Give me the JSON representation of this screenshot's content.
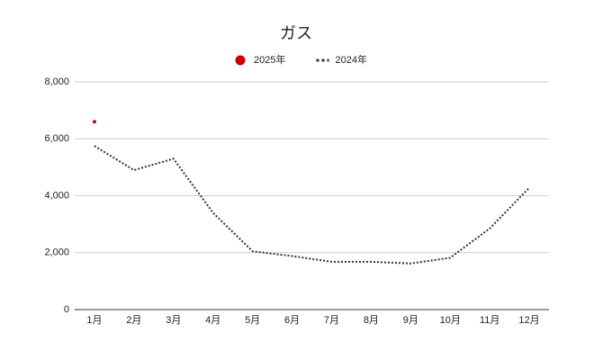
{
  "chart_data": {
    "type": "line",
    "title": "ガス",
    "categories": [
      "1月",
      "2月",
      "3月",
      "4月",
      "5月",
      "6月",
      "7月",
      "8月",
      "9月",
      "10月",
      "11月",
      "12月"
    ],
    "series": [
      {
        "name": "2025年",
        "color": "#cc0000",
        "marker": "circle",
        "values": [
          6600,
          null,
          null,
          null,
          null,
          null,
          null,
          null,
          null,
          null,
          null,
          null
        ]
      },
      {
        "name": "2024年",
        "color": "#333333",
        "dash": "dotted",
        "values": [
          5750,
          4900,
          5300,
          3400,
          2050,
          1880,
          1680,
          1680,
          1620,
          1820,
          2850,
          4280
        ]
      }
    ],
    "ylim": [
      0,
      8000
    ],
    "yticks": [
      0,
      {
        "value": 2000,
        "label": "2,000"
      },
      {
        "value": 4000,
        "label": "4,000"
      },
      {
        "value": 6000,
        "label": "6,000"
      },
      {
        "value": 8000,
        "label": "8,000"
      }
    ],
    "grid": true,
    "legend": "top"
  }
}
